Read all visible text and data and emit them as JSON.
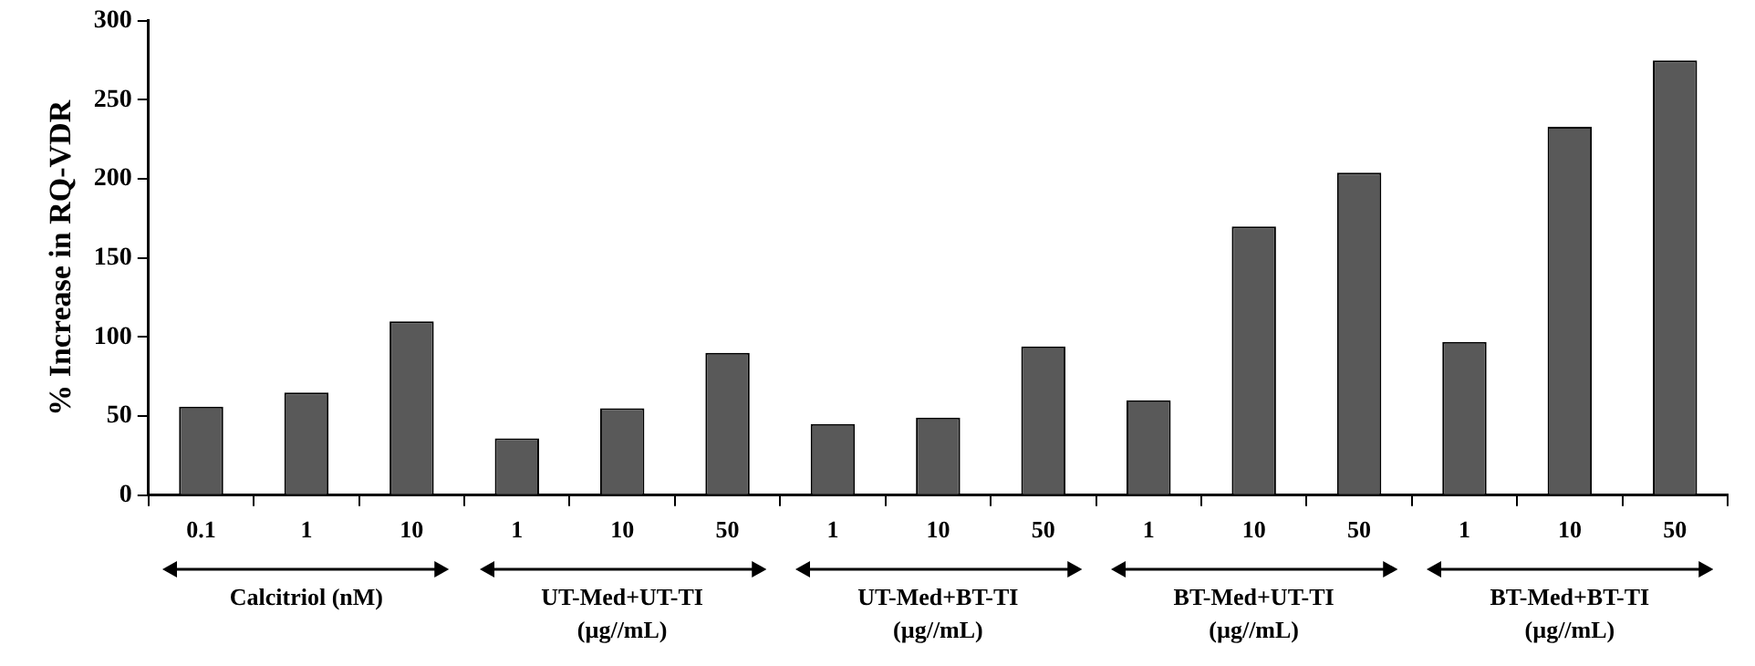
{
  "chart_data": {
    "type": "bar",
    "ylabel": "% Increase in RQ-VDR",
    "categories": [
      "0.1",
      "1",
      "10",
      "1",
      "10",
      "50",
      "1",
      "10",
      "50",
      "1",
      "10",
      "50",
      "1",
      "10",
      "50"
    ],
    "values": [
      56,
      65,
      110,
      36,
      55,
      90,
      45,
      49,
      94,
      60,
      170,
      204,
      97,
      233,
      275
    ],
    "color": "#595959",
    "ylim": [
      0,
      300
    ],
    "yticks": [
      0,
      50,
      100,
      150,
      200,
      250,
      300
    ],
    "grid": false,
    "legend": false,
    "annotations": [
      "Calcitriol (nM)",
      "UT-Med+UT-TI\n(µg//mL)",
      "UT-Med+BT-TI\n(µg//mL)",
      "BT-Med+UT-TI\n(µg//mL)",
      "BT-Med+BT-TI\n(µg//mL)"
    ]
  }
}
